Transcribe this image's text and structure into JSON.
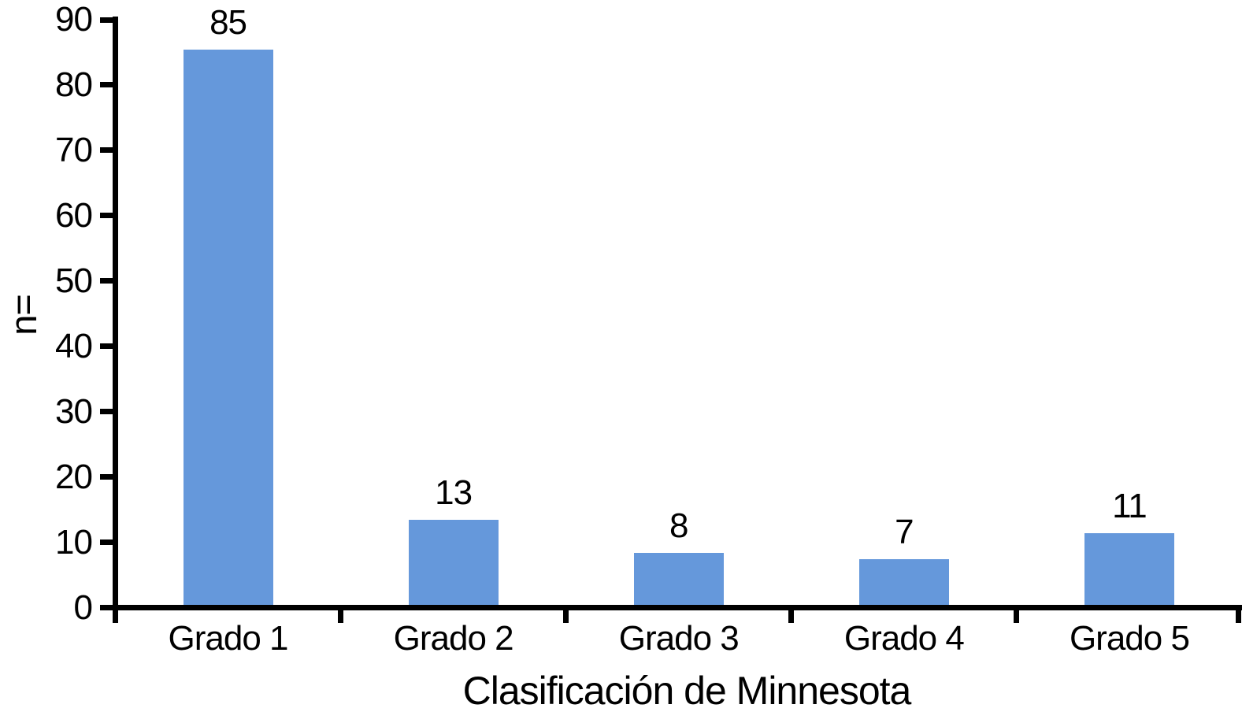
{
  "chart_data": {
    "type": "bar",
    "title": "",
    "xlabel": "Clasificación de Minnesota",
    "ylabel": "n=",
    "categories": [
      "Grado 1",
      "Grado 2",
      "Grado 3",
      "Grado 4",
      "Grado 5"
    ],
    "values": [
      85,
      13,
      8,
      7,
      11
    ],
    "bar_value_labels": [
      "85",
      "13",
      "8",
      "7",
      "11"
    ],
    "ylim": [
      0,
      90
    ],
    "yticks": [
      0,
      10,
      20,
      30,
      40,
      50,
      60,
      70,
      80,
      90
    ],
    "ytick_labels": [
      "0",
      "10",
      "20",
      "30",
      "40",
      "50",
      "60",
      "70",
      "80",
      "90"
    ],
    "grid": false,
    "legend": false,
    "bar_width_ratio": 0.4,
    "colors": {
      "bar": "#6598DB",
      "axis": "#000000",
      "text": "#000000",
      "background": "#FFFFFF"
    }
  }
}
